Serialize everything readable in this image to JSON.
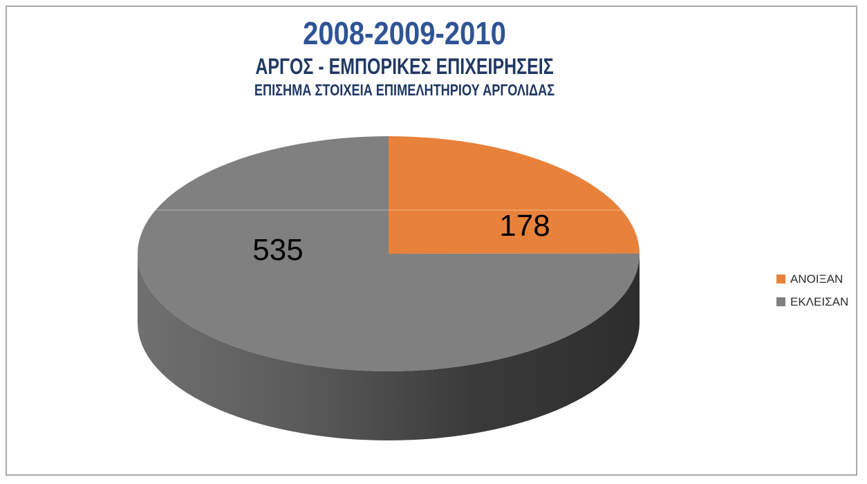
{
  "chart_data": {
    "type": "pie",
    "style": "3d",
    "title": "2008-2009-2010",
    "subtitle": "ΑΡΓΟΣ - ΕΜΠΟΡΙΚΕΣ ΕΠΙΧΕΙΡΗΣΕΙΣ",
    "subtitle2": "ΕΠΙΣΗΜΑ ΣΤΟΙΧΕΙΑ ΕΠΙΜΕΛΗΤΗΡΙΟΥ ΑΡΓΟΛΙΔΑΣ",
    "slices": [
      {
        "label": "ΑΝΟΙΞΑΝ",
        "value": 178,
        "color": "#E8813A"
      },
      {
        "label": "ΕΚΛΕΙΣΑΝ",
        "value": 535,
        "color": "#808080"
      }
    ],
    "start_angle_deg": 0,
    "clockwise": true,
    "legend_position": "right",
    "data_labels": "values",
    "side_gradient": [
      "#707070",
      "#5A5A5A",
      "#3A3A3A",
      "#2D2D2D"
    ]
  },
  "colors": {
    "title": "#2F5496",
    "subtitle": "#203864",
    "frame_border": "#A9A9A9",
    "background": "#FFFFFF",
    "data_label_text": "#000000",
    "legend_text": "#2B2B2B"
  }
}
